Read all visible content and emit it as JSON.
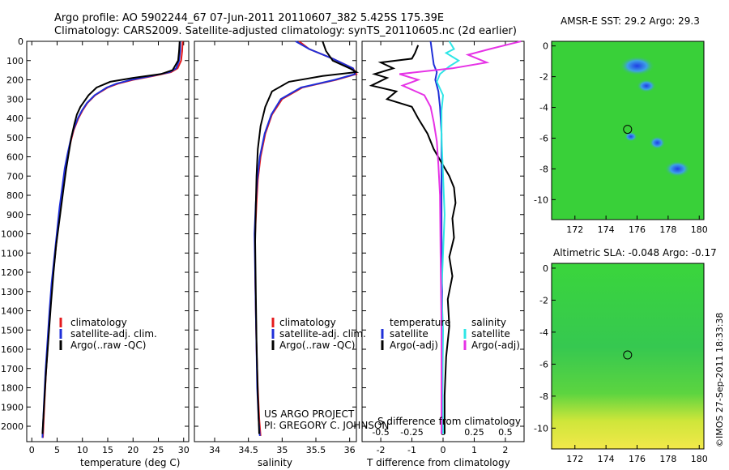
{
  "header": {
    "title_line1": "Argo profile: AO 5902244_67 07-Jun-2011 20110607_382 5.425S 175.39E",
    "title_line2": "Climatology: CARS2009. Satellite-adjusted climatology: synTS_20110605.nc (2d earlier)"
  },
  "footer": {
    "project": "US ARGO PROJECT",
    "pi": "PI: GREGORY C. JOHNSON",
    "credit": "©IMOS 27-Sep-2011 18:33:38"
  },
  "colors": {
    "climatology": "#e41a1c",
    "satellite": "#1f2fd8",
    "argo": "#000000",
    "sal_satellite": "#2ee6e6",
    "sal_argo": "#e632e6",
    "map_bg": "#39d039"
  },
  "chart_data": [
    {
      "id": "temperature",
      "type": "line",
      "xlabel": "temperature (deg C)",
      "xlim": [
        -1,
        31
      ],
      "xticks": [
        0,
        5,
        10,
        15,
        20,
        25,
        30
      ],
      "ylim": [
        2080,
        0
      ],
      "yticks": [
        0,
        100,
        200,
        300,
        400,
        500,
        600,
        700,
        800,
        900,
        1000,
        1100,
        1200,
        1300,
        1400,
        1500,
        1600,
        1700,
        1800,
        1900,
        2000
      ],
      "legend": [
        "climatology",
        "satellite-adj. clim.",
        "Argo(..raw -QC)"
      ],
      "series": [
        {
          "name": "climatology",
          "x": [
            29.8,
            29.7,
            29.5,
            28.8,
            27.5,
            24,
            20,
            17,
            15,
            12.5,
            11,
            10,
            9.2,
            8.3,
            7.7,
            7.2,
            6.6,
            6.1,
            5.6,
            5.2,
            4.8,
            4.4,
            4.0,
            3.6,
            3.2,
            2.8,
            2.5,
            2.3,
            2.2
          ],
          "y": [
            0,
            50,
            100,
            140,
            160,
            180,
            200,
            220,
            240,
            280,
            320,
            360,
            400,
            460,
            520,
            580,
            660,
            760,
            860,
            960,
            1060,
            1160,
            1260,
            1400,
            1560,
            1720,
            1880,
            2000,
            2060
          ]
        },
        {
          "name": "satellite-adj. clim.",
          "x": [
            29.3,
            29.3,
            29.1,
            28.5,
            27.2,
            23.6,
            19.6,
            16.7,
            14.8,
            12.4,
            10.9,
            9.9,
            9.1,
            8.2,
            7.6,
            7.1,
            6.5,
            6.0,
            5.5,
            5.1,
            4.7,
            4.3,
            3.9,
            3.5,
            3.1,
            2.7,
            2.4,
            2.2,
            2.1
          ],
          "y": [
            0,
            50,
            100,
            140,
            160,
            180,
            200,
            220,
            240,
            280,
            320,
            360,
            400,
            460,
            520,
            580,
            660,
            760,
            860,
            960,
            1060,
            1160,
            1260,
            1400,
            1560,
            1720,
            1880,
            2000,
            2060
          ]
        },
        {
          "name": "Argo(..raw -QC)",
          "x": [
            29.2,
            29.1,
            28.9,
            27.8,
            25.5,
            20,
            15.5,
            12.8,
            11.2,
            9.6,
            8.9,
            8.4,
            7.8,
            7.3,
            6.8,
            6.3,
            5.8,
            5.3,
            4.8,
            4.3,
            3.8,
            3.3,
            2.8,
            2.4,
            2.1
          ],
          "y": [
            0,
            50,
            100,
            150,
            170,
            190,
            210,
            240,
            280,
            340,
            380,
            430,
            500,
            580,
            660,
            760,
            860,
            960,
            1060,
            1200,
            1360,
            1540,
            1720,
            1900,
            2040
          ]
        }
      ]
    },
    {
      "id": "salinity",
      "type": "line",
      "xlabel": "salinity",
      "xlim": [
        33.7,
        36.1
      ],
      "xticks": [
        34,
        34.5,
        35,
        35.5,
        36
      ],
      "ylim": [
        2080,
        0
      ],
      "legend": [
        "climatology",
        "satellite-adj. clim.",
        "Argo(..raw -QC)"
      ],
      "series": [
        {
          "name": "climatology",
          "x": [
            35.25,
            35.4,
            35.75,
            36.05,
            36.1,
            35.8,
            35.3,
            35.0,
            34.85,
            34.75,
            34.68,
            34.64,
            34.62,
            34.6,
            34.6,
            34.61,
            34.62,
            34.64,
            34.66,
            34.68
          ],
          "y": [
            0,
            40,
            90,
            140,
            170,
            200,
            240,
            300,
            380,
            480,
            600,
            720,
            840,
            1000,
            1200,
            1400,
            1600,
            1800,
            1960,
            2050
          ]
        },
        {
          "name": "satellite-adj. clim.",
          "x": [
            35.2,
            35.4,
            35.75,
            36.05,
            36.08,
            35.78,
            35.28,
            34.98,
            34.84,
            34.74,
            34.67,
            34.63,
            34.61,
            34.59,
            34.6,
            34.61,
            34.62,
            34.63,
            34.65,
            34.67
          ],
          "y": [
            0,
            40,
            90,
            140,
            170,
            200,
            240,
            300,
            380,
            480,
            600,
            720,
            840,
            1000,
            1200,
            1400,
            1600,
            1800,
            1960,
            2050
          ]
        },
        {
          "name": "Argo(..raw -QC)",
          "x": [
            35.6,
            35.65,
            35.75,
            36.0,
            36.1,
            35.6,
            35.1,
            34.85,
            34.75,
            34.68,
            34.64,
            34.62,
            34.61,
            34.6,
            34.61,
            34.62,
            34.64,
            34.66
          ],
          "y": [
            0,
            50,
            100,
            140,
            160,
            180,
            210,
            260,
            340,
            440,
            560,
            700,
            860,
            1040,
            1300,
            1560,
            1840,
            2040
          ]
        }
      ]
    },
    {
      "id": "difference",
      "type": "line",
      "xlabel": "T difference from climatology",
      "xlabel_top": "S difference from climatology",
      "xlim": [
        -2.6,
        2.6
      ],
      "xticks": [
        -2,
        -1,
        0,
        1,
        2
      ],
      "xticks_sal": [
        "-0.5",
        "-0.25",
        "0",
        "0.25",
        "0.5"
      ],
      "ylim": [
        2080,
        0
      ],
      "legend_headers": [
        "temperature",
        "salinity"
      ],
      "legend": [
        "satellite",
        "Argo(-adj)",
        "satellite",
        "Argo(-adj)"
      ],
      "series": [
        {
          "name": "satellite",
          "x": [
            -0.4,
            -0.35,
            -0.3,
            -0.2,
            -0.25,
            -0.15,
            -0.1,
            -0.05,
            -0.05,
            -0.05,
            -0.03,
            -0.02,
            -0.02
          ],
          "y": [
            0,
            60,
            120,
            160,
            200,
            260,
            340,
            480,
            700,
            1000,
            1300,
            1700,
            2040
          ]
        },
        {
          "name": "Argo(-adj)",
          "x": [
            -0.8,
            -0.9,
            -1.0,
            -2.0,
            -1.6,
            -2.2,
            -1.8,
            -2.3,
            -1.5,
            -1.8,
            -1.0,
            -0.8,
            -0.5,
            -0.3,
            0.2,
            0.35,
            0.4,
            0.3,
            0.35,
            0.2,
            0.3,
            0.15,
            0.2,
            0.1,
            0.05,
            0.05
          ],
          "y": [
            20,
            60,
            90,
            110,
            140,
            170,
            190,
            230,
            260,
            300,
            340,
            400,
            480,
            560,
            700,
            760,
            840,
            920,
            1020,
            1120,
            1220,
            1340,
            1480,
            1640,
            1840,
            2040
          ]
        },
        {
          "name": "satellite",
          "x": [
            0.2,
            0.35,
            0.1,
            0.5,
            0.2,
            -0.1,
            -0.2,
            0.0,
            -0.05,
            -0.05,
            0.0,
            0.05,
            0.0,
            -0.05,
            0.0,
            -0.02,
            0.0
          ],
          "y": [
            0,
            40,
            60,
            100,
            130,
            170,
            210,
            280,
            360,
            500,
            700,
            900,
            1100,
            1300,
            1500,
            1800,
            2040
          ]
        },
        {
          "name": "Argo(-adj)",
          "x": [
            2.5,
            1.5,
            0.8,
            1.4,
            0.3,
            -1.4,
            -0.8,
            -1.3,
            -0.6,
            -0.4,
            -0.3,
            -0.2,
            -0.15,
            -0.1,
            -0.08,
            -0.05,
            -0.05
          ],
          "y": [
            0,
            40,
            70,
            110,
            140,
            170,
            200,
            230,
            280,
            340,
            420,
            520,
            640,
            800,
            1100,
            1500,
            2040
          ]
        }
      ]
    }
  ],
  "maps": [
    {
      "title": "AMSR-E SST: 29.2 Argo: 29.3",
      "xlim": [
        170.5,
        180.3
      ],
      "ylim": [
        -11.3,
        0.3
      ],
      "xticks": [
        172,
        174,
        176,
        178,
        180
      ],
      "yticks": [
        0,
        -2,
        -4,
        -6,
        -8,
        -10
      ],
      "marker": {
        "lon": 175.39,
        "lat": -5.425
      }
    },
    {
      "title": "Altimetric SLA: -0.048 Argo: -0.17",
      "xlim": [
        170.5,
        180.3
      ],
      "ylim": [
        -11.3,
        0.3
      ],
      "xticks": [
        172,
        174,
        176,
        178,
        180
      ],
      "yticks": [
        0,
        -2,
        -4,
        -6,
        -8,
        -10
      ],
      "marker": {
        "lon": 175.39,
        "lat": -5.425
      }
    }
  ]
}
